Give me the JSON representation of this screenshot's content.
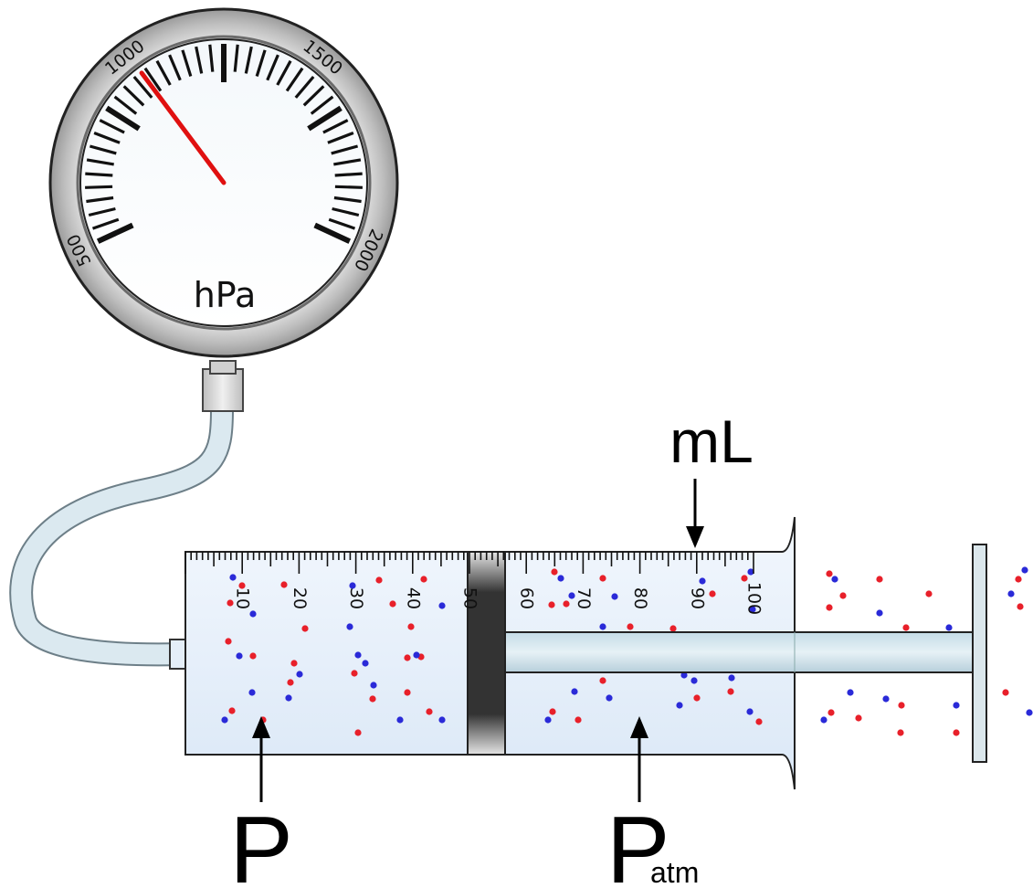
{
  "gauge": {
    "unit_label": "hPa",
    "scale_min": 500,
    "scale_max": 2000,
    "major_labels": [
      "500",
      "1000",
      "1500",
      "2000"
    ],
    "needle_value": 1000,
    "needle_color": "#e01010"
  },
  "syringe": {
    "volume_label": "mL",
    "scale_labels": [
      "10",
      "20",
      "30",
      "40",
      "50",
      "60",
      "70",
      "80",
      "90",
      "100"
    ],
    "plunger_value": 50
  },
  "labels": {
    "inside_pressure": "P",
    "outside_pressure_main": "P",
    "outside_pressure_sub": "atm"
  },
  "molecule_colors": {
    "red": "#e8202a",
    "blue": "#2a2ad8"
  }
}
